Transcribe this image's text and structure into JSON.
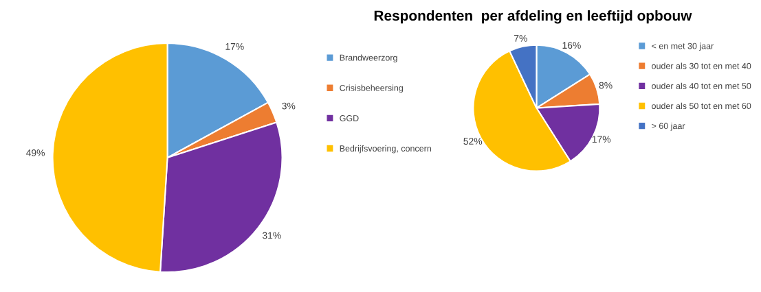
{
  "chart_data": [
    {
      "type": "pie",
      "categories": [
        "Brandweerzorg",
        "Crisisbeheersing",
        "GGD",
        "Bedrijfsvoering, concern"
      ],
      "values": [
        17,
        3,
        31,
        49
      ],
      "value_labels": [
        "17%",
        "3%",
        "31%",
        "49%"
      ],
      "colors": [
        "#5b9bd5",
        "#ed7d31",
        "#7030a0",
        "#ffc000"
      ],
      "legend": "right"
    },
    {
      "type": "pie",
      "title": "Respondenten  per afdeling en leeftijd opbouw",
      "categories": [
        "< en met 30 jaar",
        "ouder als 30 tot en met 40",
        "ouder als 40 tot en met 50",
        "ouder als 50 tot en met 60",
        "> 60 jaar"
      ],
      "values": [
        16,
        8,
        17,
        52,
        7
      ],
      "value_labels": [
        "16%",
        "8%",
        "17%",
        "52%",
        "7%"
      ],
      "colors": [
        "#5b9bd5",
        "#ed7d31",
        "#7030a0",
        "#ffc000",
        "#4472c4"
      ],
      "legend": "right"
    }
  ]
}
